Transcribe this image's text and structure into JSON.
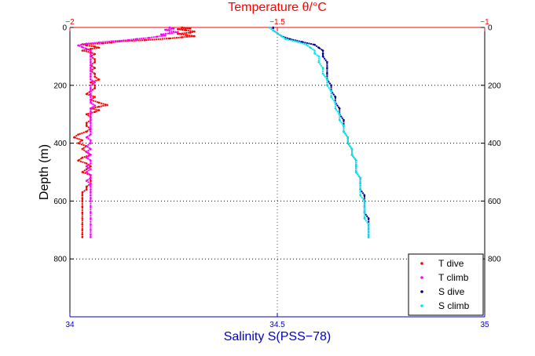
{
  "chart_data": {
    "type": "scatter",
    "title": "Temperature θ/°C",
    "xlabel": "Salinity S(PSS−78)",
    "ylabel": "Depth (m)",
    "top_axis": {
      "label": "Temperature θ/°C",
      "range": [
        -2,
        -1
      ],
      "ticks": [
        -2,
        -1.5,
        -1
      ],
      "tick_labels": [
        "−2",
        "−1.5",
        "−1"
      ],
      "color": "#ff0000"
    },
    "bottom_axis": {
      "label": "Salinity S(PSS−78)",
      "range": [
        34,
        35
      ],
      "ticks": [
        34,
        34.5,
        35
      ],
      "tick_labels": [
        "34",
        "34.5",
        "35"
      ],
      "color": "#0000cc"
    },
    "y_axis": {
      "range": [
        0,
        1000
      ],
      "reversed": true,
      "ticks": [
        0,
        200,
        400,
        600,
        800
      ],
      "tick_labels": [
        "0",
        "200",
        "400",
        "600",
        "800"
      ]
    },
    "grid": true,
    "legend_position": "bottom-right",
    "series": [
      {
        "name": "T dive",
        "axis": "top",
        "color": "#ff0000",
        "points": [
          [
            -1.73,
            0
          ],
          [
            -1.71,
            3
          ],
          [
            -1.74,
            6
          ],
          [
            -1.72,
            10
          ],
          [
            -1.7,
            14
          ],
          [
            -1.71,
            18
          ],
          [
            -1.74,
            22
          ],
          [
            -1.72,
            26
          ],
          [
            -1.7,
            30
          ],
          [
            -1.73,
            34
          ],
          [
            -1.76,
            38
          ],
          [
            -1.82,
            44
          ],
          [
            -1.88,
            48
          ],
          [
            -1.9,
            52
          ],
          [
            -1.92,
            55
          ],
          [
            -1.97,
            58
          ],
          [
            -1.96,
            62
          ],
          [
            -1.94,
            66
          ],
          [
            -1.93,
            70
          ],
          [
            -1.95,
            74
          ],
          [
            -1.97,
            80
          ],
          [
            -1.95,
            86
          ],
          [
            -1.94,
            92
          ],
          [
            -1.95,
            100
          ],
          [
            -1.94,
            110
          ],
          [
            -1.94,
            120
          ],
          [
            -1.95,
            130
          ],
          [
            -1.94,
            140
          ],
          [
            -1.95,
            150
          ],
          [
            -1.94,
            160
          ],
          [
            -1.94,
            170
          ],
          [
            -1.93,
            180
          ],
          [
            -1.95,
            190
          ],
          [
            -1.94,
            200
          ],
          [
            -1.94,
            210
          ],
          [
            -1.95,
            220
          ],
          [
            -1.96,
            230
          ],
          [
            -1.94,
            240
          ],
          [
            -1.95,
            250
          ],
          [
            -1.93,
            260
          ],
          [
            -1.91,
            268
          ],
          [
            -1.93,
            274
          ],
          [
            -1.95,
            280
          ],
          [
            -1.93,
            286
          ],
          [
            -1.94,
            292
          ],
          [
            -1.96,
            300
          ],
          [
            -1.95,
            310
          ],
          [
            -1.95,
            320
          ],
          [
            -1.96,
            330
          ],
          [
            -1.96,
            340
          ],
          [
            -1.95,
            350
          ],
          [
            -1.96,
            360
          ],
          [
            -1.98,
            370
          ],
          [
            -1.99,
            380
          ],
          [
            -1.97,
            390
          ],
          [
            -1.98,
            400
          ],
          [
            -1.96,
            410
          ],
          [
            -1.97,
            420
          ],
          [
            -1.96,
            430
          ],
          [
            -1.95,
            440
          ],
          [
            -1.97,
            450
          ],
          [
            -1.98,
            460
          ],
          [
            -1.96,
            470
          ],
          [
            -1.95,
            480
          ],
          [
            -1.96,
            490
          ],
          [
            -1.97,
            500
          ],
          [
            -1.95,
            510
          ],
          [
            -1.95,
            520
          ],
          [
            -1.95,
            530
          ],
          [
            -1.95,
            540
          ],
          [
            -1.96,
            550
          ],
          [
            -1.96,
            560
          ],
          [
            -1.97,
            570
          ],
          [
            -1.97,
            580
          ],
          [
            -1.97,
            590
          ],
          [
            -1.97,
            600
          ],
          [
            -1.97,
            620
          ],
          [
            -1.97,
            640
          ],
          [
            -1.97,
            660
          ],
          [
            -1.97,
            680
          ],
          [
            -1.97,
            700
          ],
          [
            -1.97,
            715
          ],
          [
            -1.97,
            725
          ]
        ]
      },
      {
        "name": "T climb",
        "axis": "top",
        "color": "#ff00ff",
        "points": [
          [
            -1.76,
            0
          ],
          [
            -1.75,
            4
          ],
          [
            -1.77,
            8
          ],
          [
            -1.76,
            12
          ],
          [
            -1.74,
            16
          ],
          [
            -1.76,
            20
          ],
          [
            -1.78,
            24
          ],
          [
            -1.77,
            28
          ],
          [
            -1.79,
            32
          ],
          [
            -1.81,
            36
          ],
          [
            -1.84,
            40
          ],
          [
            -1.86,
            44
          ],
          [
            -1.9,
            48
          ],
          [
            -1.93,
            52
          ],
          [
            -1.96,
            56
          ],
          [
            -1.98,
            62
          ],
          [
            -1.97,
            68
          ],
          [
            -1.96,
            74
          ],
          [
            -1.95,
            80
          ],
          [
            -1.95,
            90
          ],
          [
            -1.95,
            100
          ],
          [
            -1.95,
            110
          ],
          [
            -1.95,
            120
          ],
          [
            -1.95,
            130
          ],
          [
            -1.95,
            140
          ],
          [
            -1.95,
            150
          ],
          [
            -1.95,
            160
          ],
          [
            -1.95,
            170
          ],
          [
            -1.95,
            180
          ],
          [
            -1.94,
            190
          ],
          [
            -1.95,
            200
          ],
          [
            -1.95,
            210
          ],
          [
            -1.95,
            220
          ],
          [
            -1.95,
            230
          ],
          [
            -1.95,
            240
          ],
          [
            -1.95,
            250
          ],
          [
            -1.95,
            260
          ],
          [
            -1.94,
            270
          ],
          [
            -1.95,
            280
          ],
          [
            -1.95,
            290
          ],
          [
            -1.95,
            300
          ],
          [
            -1.95,
            310
          ],
          [
            -1.95,
            320
          ],
          [
            -1.95,
            330
          ],
          [
            -1.95,
            340
          ],
          [
            -1.95,
            350
          ],
          [
            -1.95,
            360
          ],
          [
            -1.95,
            370
          ],
          [
            -1.96,
            380
          ],
          [
            -1.95,
            390
          ],
          [
            -1.95,
            400
          ],
          [
            -1.96,
            410
          ],
          [
            -1.95,
            420
          ],
          [
            -1.96,
            430
          ],
          [
            -1.95,
            440
          ],
          [
            -1.96,
            450
          ],
          [
            -1.95,
            460
          ],
          [
            -1.95,
            470
          ],
          [
            -1.96,
            480
          ],
          [
            -1.95,
            490
          ],
          [
            -1.96,
            500
          ],
          [
            -1.95,
            510
          ],
          [
            -1.95,
            520
          ],
          [
            -1.96,
            530
          ],
          [
            -1.95,
            540
          ],
          [
            -1.95,
            550
          ],
          [
            -1.95,
            560
          ],
          [
            -1.95,
            570
          ],
          [
            -1.95,
            580
          ],
          [
            -1.95,
            590
          ],
          [
            -1.95,
            600
          ],
          [
            -1.95,
            620
          ],
          [
            -1.95,
            640
          ],
          [
            -1.95,
            660
          ],
          [
            -1.95,
            680
          ],
          [
            -1.95,
            700
          ],
          [
            -1.95,
            715
          ],
          [
            -1.95,
            725
          ]
        ]
      },
      {
        "name": "S dive",
        "axis": "bottom",
        "color": "#00008b",
        "points": [
          [
            34.49,
            0
          ],
          [
            34.49,
            10
          ],
          [
            34.5,
            20
          ],
          [
            34.51,
            30
          ],
          [
            34.53,
            40
          ],
          [
            34.56,
            50
          ],
          [
            34.59,
            60
          ],
          [
            34.6,
            70
          ],
          [
            34.61,
            80
          ],
          [
            34.61,
            90
          ],
          [
            34.61,
            100
          ],
          [
            34.62,
            120
          ],
          [
            34.62,
            140
          ],
          [
            34.62,
            160
          ],
          [
            34.62,
            180
          ],
          [
            34.63,
            200
          ],
          [
            34.63,
            220
          ],
          [
            34.64,
            240
          ],
          [
            34.64,
            260
          ],
          [
            34.65,
            280
          ],
          [
            34.65,
            300
          ],
          [
            34.66,
            320
          ],
          [
            34.66,
            340
          ],
          [
            34.66,
            360
          ],
          [
            34.67,
            380
          ],
          [
            34.67,
            400
          ],
          [
            34.68,
            420
          ],
          [
            34.68,
            440
          ],
          [
            34.69,
            460
          ],
          [
            34.69,
            480
          ],
          [
            34.69,
            500
          ],
          [
            34.7,
            520
          ],
          [
            34.7,
            540
          ],
          [
            34.7,
            560
          ],
          [
            34.71,
            580
          ],
          [
            34.71,
            600
          ],
          [
            34.71,
            620
          ],
          [
            34.71,
            640
          ],
          [
            34.72,
            660
          ],
          [
            34.72,
            680
          ],
          [
            34.72,
            700
          ],
          [
            34.72,
            715
          ],
          [
            34.72,
            725
          ]
        ]
      },
      {
        "name": "S climb",
        "axis": "bottom",
        "color": "#00e5ee",
        "points": [
          [
            34.48,
            0
          ],
          [
            34.49,
            10
          ],
          [
            34.5,
            20
          ],
          [
            34.51,
            30
          ],
          [
            34.52,
            40
          ],
          [
            34.55,
            50
          ],
          [
            34.57,
            60
          ],
          [
            34.58,
            70
          ],
          [
            34.59,
            80
          ],
          [
            34.59,
            90
          ],
          [
            34.6,
            100
          ],
          [
            34.6,
            120
          ],
          [
            34.61,
            140
          ],
          [
            34.61,
            160
          ],
          [
            34.62,
            180
          ],
          [
            34.62,
            200
          ],
          [
            34.63,
            220
          ],
          [
            34.63,
            240
          ],
          [
            34.64,
            260
          ],
          [
            34.64,
            280
          ],
          [
            34.65,
            300
          ],
          [
            34.65,
            320
          ],
          [
            34.66,
            340
          ],
          [
            34.66,
            360
          ],
          [
            34.67,
            380
          ],
          [
            34.67,
            400
          ],
          [
            34.68,
            420
          ],
          [
            34.68,
            440
          ],
          [
            34.69,
            460
          ],
          [
            34.69,
            480
          ],
          [
            34.69,
            500
          ],
          [
            34.7,
            520
          ],
          [
            34.7,
            540
          ],
          [
            34.7,
            560
          ],
          [
            34.7,
            580
          ],
          [
            34.71,
            600
          ],
          [
            34.71,
            620
          ],
          [
            34.71,
            640
          ],
          [
            34.71,
            660
          ],
          [
            34.72,
            680
          ],
          [
            34.72,
            700
          ],
          [
            34.72,
            715
          ],
          [
            34.72,
            725
          ]
        ]
      }
    ]
  }
}
